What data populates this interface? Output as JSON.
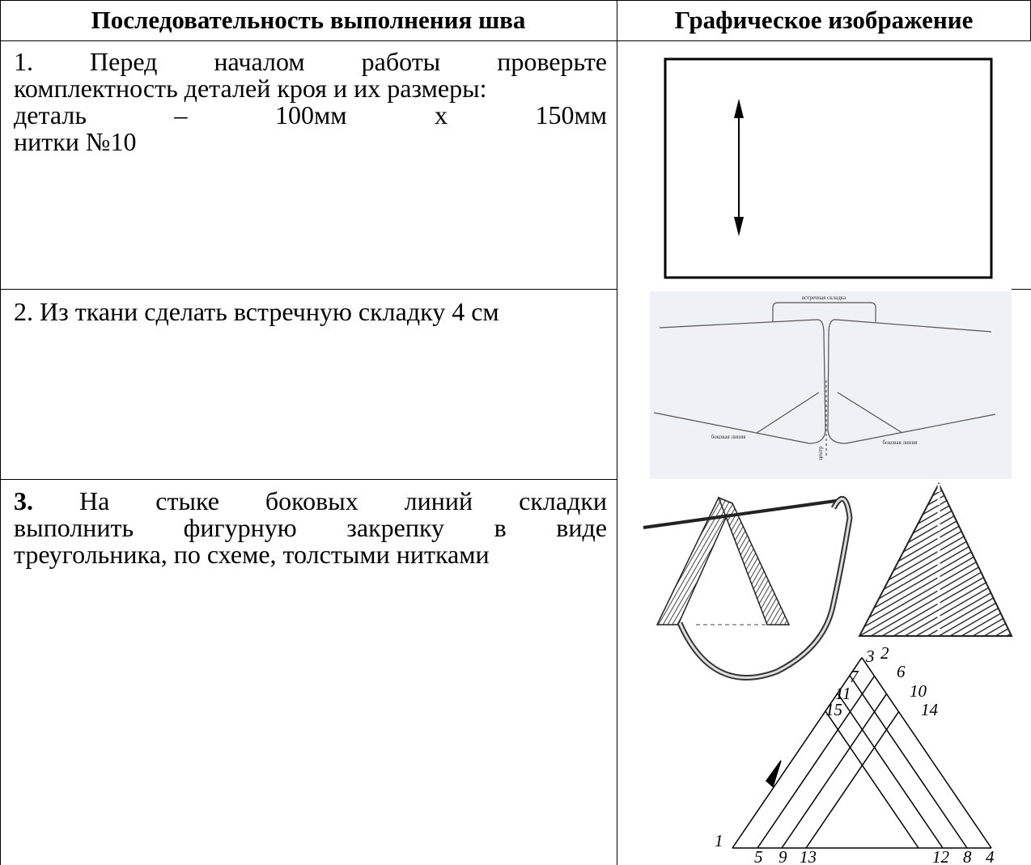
{
  "table": {
    "header": [
      "Последовательность выполнения шва",
      "Графическое изображение"
    ],
    "rows": [
      {
        "lines": [
          "1. Перед началом работы проверьте",
          "комплектность деталей кроя и их размеры:",
          "деталь – 100мм x 150мм",
          "нитки №10"
        ]
      },
      {
        "lines": [
          "2. Из ткани сделать встречную складку 4 см"
        ],
        "figure": {
          "labels": [
            "встречная складка",
            "боковая линия",
            "центр",
            "боковая линия"
          ]
        }
      },
      {
        "number": "3.",
        "lines": [
          "На стыке боковых линий складки",
          "выполнить фигурную закрепку в виде",
          "треугольника, по схеме, толстыми нитками"
        ],
        "figure": {
          "labels": [
            "1",
            "5",
            "9",
            "13",
            "12",
            "8",
            "4",
            "3",
            "2",
            "7",
            "6",
            "11",
            "10",
            "15",
            "14"
          ]
        }
      }
    ]
  }
}
